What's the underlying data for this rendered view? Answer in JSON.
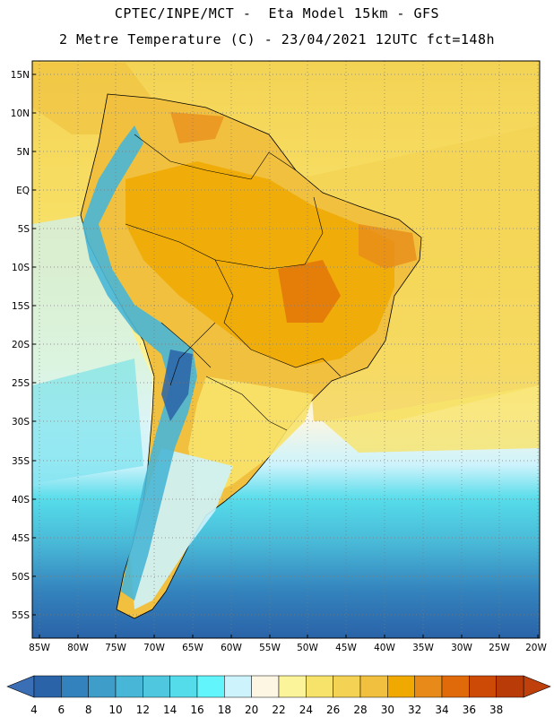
{
  "header": {
    "line1": "CPTEC/INPE/MCT -  Eta Model 15km - GFS",
    "line2": "2 Metre Temperature (C) - 23/04/2021 12UTC fct=148h"
  },
  "axes": {
    "lat_labels": [
      "15N",
      "10N",
      "5N",
      "EQ",
      "5S",
      "10S",
      "15S",
      "20S",
      "25S",
      "30S",
      "35S",
      "40S",
      "45S",
      "50S",
      "55S"
    ],
    "lon_labels": [
      "85W",
      "80W",
      "75W",
      "70W",
      "65W",
      "60W",
      "55W",
      "50W",
      "45W",
      "40W",
      "35W",
      "30W",
      "25W",
      "20W"
    ]
  },
  "colorbar": {
    "labels": [
      "4",
      "6",
      "8",
      "10",
      "12",
      "14",
      "16",
      "18",
      "20",
      "22",
      "24",
      "26",
      "28",
      "30",
      "32",
      "34",
      "36",
      "38"
    ],
    "low_color": "#3a6fb5",
    "high_color": "#c0400b",
    "colors": [
      "#2a63a8",
      "#3382bd",
      "#3e9dc9",
      "#48b6d6",
      "#4fc8df",
      "#55dcea",
      "#63f5fc",
      "#cdf3fc",
      "#fcf6e2",
      "#fcf49a",
      "#f8e36a",
      "#f4d354",
      "#f0c03e",
      "#f0a900",
      "#e88a1a",
      "#e06a0a",
      "#cc4a06",
      "#b93b07"
    ]
  }
}
